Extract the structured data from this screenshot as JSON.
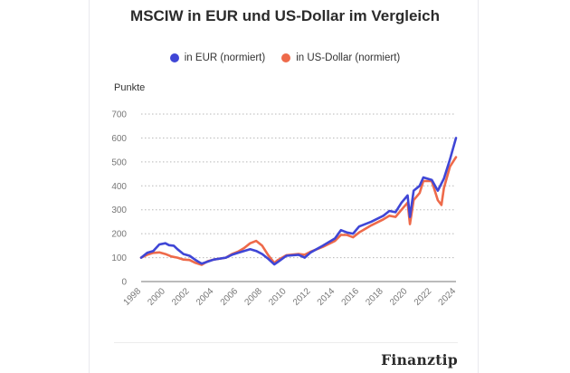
{
  "title": "MSCIW in EUR und US-Dollar im Vergleich",
  "brand": "Finanztip",
  "colors": {
    "eur": "#3f46d6",
    "usd": "#ee6a4a",
    "grid": "#b8b8b8",
    "text": "#2b2b2b"
  },
  "chart_data": {
    "type": "line",
    "title": "MSCIW in EUR und US-Dollar im Vergleich",
    "ylabel": "Punkte",
    "xlabel": "",
    "ylim": [
      0,
      700
    ],
    "xlim": [
      1998,
      2024
    ],
    "yticks": [
      0,
      100,
      200,
      300,
      400,
      500,
      600,
      700
    ],
    "xticks": [
      "1998",
      "2000",
      "2002",
      "2004",
      "2006",
      "2008",
      "2010",
      "2012",
      "2014",
      "2016",
      "2018",
      "2020",
      "2022",
      "2024"
    ],
    "grid": true,
    "legend_position": "top-center",
    "series": [
      {
        "name": "in EUR (normiert)",
        "color": "#3f46d6",
        "x": [
          1998.0,
          1998.5,
          1999.0,
          1999.5,
          2000.0,
          2000.3,
          2000.7,
          2001.0,
          2001.5,
          2002.0,
          2002.5,
          2003.0,
          2003.3,
          2004.0,
          2005.0,
          2005.5,
          2006.0,
          2006.5,
          2007.0,
          2007.5,
          2008.0,
          2008.5,
          2009.0,
          2009.3,
          2010.0,
          2011.0,
          2011.5,
          2012.0,
          2013.0,
          2014.0,
          2014.5,
          2015.0,
          2015.5,
          2016.0,
          2017.0,
          2018.0,
          2018.5,
          2019.0,
          2019.5,
          2020.0,
          2020.2,
          2020.5,
          2021.0,
          2021.3,
          2022.0,
          2022.5,
          2023.0,
          2023.5,
          2024.0
        ],
        "values": [
          100,
          120,
          128,
          155,
          160,
          152,
          150,
          135,
          115,
          108,
          90,
          75,
          80,
          92,
          100,
          112,
          120,
          128,
          135,
          128,
          115,
          95,
          72,
          82,
          108,
          112,
          100,
          122,
          150,
          180,
          215,
          205,
          200,
          230,
          250,
          275,
          295,
          290,
          330,
          360,
          270,
          380,
          400,
          435,
          425,
          380,
          430,
          510,
          600
        ]
      },
      {
        "name": "in US-Dollar (normiert)",
        "color": "#ee6a4a",
        "x": [
          1998.0,
          1998.5,
          1999.0,
          1999.5,
          2000.0,
          2000.5,
          2001.0,
          2001.5,
          2002.0,
          2002.5,
          2003.0,
          2003.5,
          2004.0,
          2005.0,
          2005.5,
          2006.0,
          2006.5,
          2007.0,
          2007.5,
          2008.0,
          2008.5,
          2009.0,
          2009.3,
          2010.0,
          2011.0,
          2011.5,
          2012.0,
          2013.0,
          2014.0,
          2014.5,
          2015.0,
          2015.5,
          2016.0,
          2017.0,
          2018.0,
          2018.5,
          2019.0,
          2019.5,
          2020.0,
          2020.2,
          2020.5,
          2021.0,
          2021.3,
          2022.0,
          2022.5,
          2022.8,
          2023.0,
          2023.5,
          2024.0
        ],
        "values": [
          100,
          112,
          120,
          122,
          115,
          105,
          100,
          92,
          90,
          78,
          70,
          85,
          92,
          100,
          115,
          125,
          140,
          160,
          170,
          150,
          110,
          78,
          90,
          110,
          115,
          112,
          125,
          145,
          170,
          195,
          195,
          185,
          205,
          235,
          260,
          275,
          270,
          300,
          330,
          240,
          340,
          370,
          420,
          420,
          340,
          320,
          390,
          480,
          520
        ]
      }
    ]
  }
}
